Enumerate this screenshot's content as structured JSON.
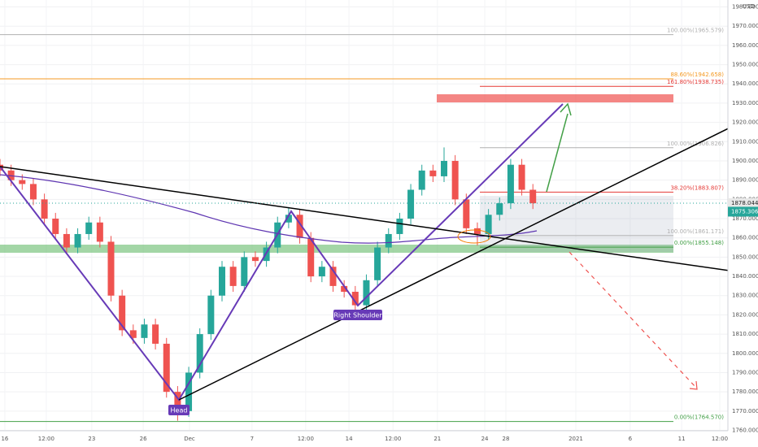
{
  "chart_data": {
    "type": "candlestick",
    "currency": "USD",
    "x": [
      0,
      3,
      6,
      9,
      12,
      15,
      18,
      21,
      24,
      27,
      30,
      33,
      36,
      39,
      42,
      45,
      48,
      51,
      54,
      57,
      60,
      63,
      66,
      69,
      72,
      75,
      78,
      81,
      84,
      87,
      90,
      93,
      96,
      99,
      102,
      105,
      108,
      111,
      114,
      117,
      120,
      123,
      126,
      129,
      132,
      135,
      138,
      141,
      144
    ],
    "open": [
      1898,
      1895,
      1890,
      1888,
      1880,
      1870,
      1862,
      1855,
      1862,
      1868,
      1858,
      1830,
      1812,
      1808,
      1815,
      1805,
      1780,
      1770,
      1790,
      1810,
      1830,
      1845,
      1835,
      1850,
      1848,
      1855,
      1868,
      1872,
      1860,
      1840,
      1845,
      1835,
      1832,
      1825,
      1838,
      1855,
      1862,
      1870,
      1885,
      1895,
      1892,
      1900,
      1880,
      1865,
      1862,
      1872,
      1878,
      1898,
      1885
    ],
    "high": [
      1901,
      1898,
      1893,
      1891,
      1883,
      1873,
      1865,
      1865,
      1871,
      1871,
      1861,
      1833,
      1815,
      1818,
      1818,
      1808,
      1783,
      1793,
      1813,
      1833,
      1848,
      1848,
      1853,
      1853,
      1858,
      1871,
      1876,
      1875,
      1863,
      1848,
      1848,
      1838,
      1835,
      1841,
      1858,
      1865,
      1873,
      1888,
      1898,
      1898,
      1907,
      1903,
      1883,
      1868,
      1875,
      1881,
      1901,
      1901,
      1888
    ],
    "low": [
      1892,
      1887,
      1885,
      1877,
      1867,
      1859,
      1852,
      1852,
      1859,
      1855,
      1827,
      1809,
      1805,
      1805,
      1802,
      1777,
      1765,
      1767,
      1787,
      1807,
      1827,
      1832,
      1832,
      1845,
      1845,
      1852,
      1865,
      1857,
      1837,
      1837,
      1832,
      1829,
      1820,
      1822,
      1835,
      1852,
      1859,
      1867,
      1882,
      1889,
      1889,
      1877,
      1862,
      1856,
      1859,
      1869,
      1875,
      1882,
      1875
    ],
    "close": [
      1895,
      1890,
      1888,
      1880,
      1870,
      1862,
      1855,
      1862,
      1868,
      1858,
      1830,
      1812,
      1808,
      1815,
      1805,
      1780,
      1770,
      1790,
      1810,
      1830,
      1845,
      1835,
      1850,
      1848,
      1855,
      1868,
      1872,
      1860,
      1840,
      1845,
      1835,
      1832,
      1825,
      1838,
      1855,
      1862,
      1870,
      1885,
      1895,
      1892,
      1900,
      1880,
      1865,
      1862,
      1872,
      1878,
      1898,
      1885,
      1878
    ],
    "up_color": "#26a69a",
    "down_color": "#ef5350",
    "xlim": [
      0,
      196.7
    ],
    "xticks": [
      {
        "value": 1.3,
        "label": "16"
      },
      {
        "value": 12.5,
        "label": "12:00"
      },
      {
        "value": 24.8,
        "label": "23"
      },
      {
        "value": 38.7,
        "label": "26"
      },
      {
        "value": 51.2,
        "label": "Dec"
      },
      {
        "value": 68.1,
        "label": "7"
      },
      {
        "value": 82.6,
        "label": "12:00"
      },
      {
        "value": 94.3,
        "label": "14"
      },
      {
        "value": 106.2,
        "label": "12:00"
      },
      {
        "value": 118.2,
        "label": "21"
      },
      {
        "value": 131,
        "label": "24"
      },
      {
        "value": 136.7,
        "label": "28"
      },
      {
        "value": 155.6,
        "label": "2021"
      },
      {
        "value": 170.3,
        "label": "6"
      },
      {
        "value": 184.2,
        "label": "11"
      },
      {
        "value": 194.5,
        "label": "12:00"
      }
    ],
    "ylim": [
      1760,
      1983.6
    ],
    "yticks": [
      {
        "value": 1760,
        "label": "1760.000"
      },
      {
        "value": 1770,
        "label": "1770.000"
      },
      {
        "value": 1780,
        "label": "1780.000"
      },
      {
        "value": 1790,
        "label": "1790.000"
      },
      {
        "value": 1800,
        "label": "1800.000"
      },
      {
        "value": 1810,
        "label": "1810.000"
      },
      {
        "value": 1820,
        "label": "1820.000"
      },
      {
        "value": 1830,
        "label": "1830.000"
      },
      {
        "value": 1840,
        "label": "1840.000"
      },
      {
        "value": 1850,
        "label": "1850.000"
      },
      {
        "value": 1860,
        "label": "1860.000"
      },
      {
        "value": 1870,
        "label": "1870.000"
      },
      {
        "value": 1880,
        "label": "1880.000"
      },
      {
        "value": 1890,
        "label": "1890.000"
      },
      {
        "value": 1900,
        "label": "1900.000"
      },
      {
        "value": 1910,
        "label": "1910.000"
      },
      {
        "value": 1920,
        "label": "1920.000"
      },
      {
        "value": 1930,
        "label": "1930.000"
      },
      {
        "value": 1940,
        "label": "1940.000"
      },
      {
        "value": 1950,
        "label": "1950.000"
      },
      {
        "value": 1960,
        "label": "1960.000"
      },
      {
        "value": 1970,
        "label": "1970.000"
      },
      {
        "value": 1980,
        "label": "1980.000"
      }
    ],
    "levels": [
      {
        "value": 1965.579,
        "label": "100.00%(1965.579)",
        "color": "#b0b0b0"
      },
      {
        "value": 1942.658,
        "label": "88.60%(1942.658)",
        "color": "#f59a23"
      },
      {
        "value": 1938.735,
        "label": "161.80%(1938.735)",
        "color": "#e53935"
      },
      {
        "value": 1906.826,
        "label": "100.00%(1906.826)",
        "color": "#b0b0b0"
      },
      {
        "value": 1883.807,
        "label": "38.20%(1883.807)",
        "color": "#e53935"
      },
      {
        "value": 1861.171,
        "label": "100.00%(1861.171)",
        "color": "#b0b0b0"
      },
      {
        "value": 1855.148,
        "label": "0.00%(1855.148)",
        "color": "#43a047"
      },
      {
        "value": 1764.57,
        "label": "0.00%(1764.570)",
        "color": "#43a047"
      }
    ],
    "last_price": 1878.044,
    "countdown": "02:25:51",
    "bid_price": 1875.306,
    "annotations": [
      "Head",
      "Right Shoulder"
    ]
  }
}
